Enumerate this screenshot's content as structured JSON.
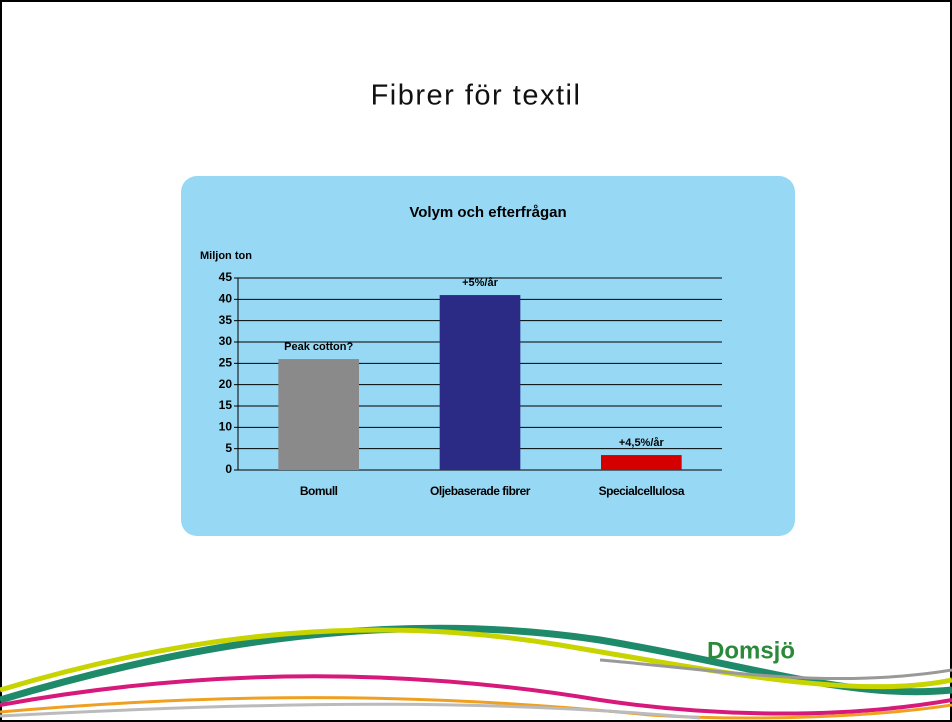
{
  "page_title": "Fibrer för textil",
  "logo": "Domsjö",
  "chart_data": {
    "type": "bar",
    "title": "Volym och efterfrågan",
    "y_label": "Miljon ton",
    "categories": [
      "Bomull",
      "Oljebaserade fibrer",
      "Specialcellulosa"
    ],
    "values": [
      26,
      41,
      3.5
    ],
    "annotations": [
      "Peak cotton?",
      "+5%/år",
      "+4,5%/år"
    ],
    "colors": [
      "#8a8a8a",
      "#2b2b85",
      "#d40000"
    ],
    "ylim": [
      0,
      45
    ],
    "yticks": [
      0,
      5,
      10,
      15,
      20,
      25,
      30,
      35,
      40,
      45
    ],
    "grid": true
  }
}
